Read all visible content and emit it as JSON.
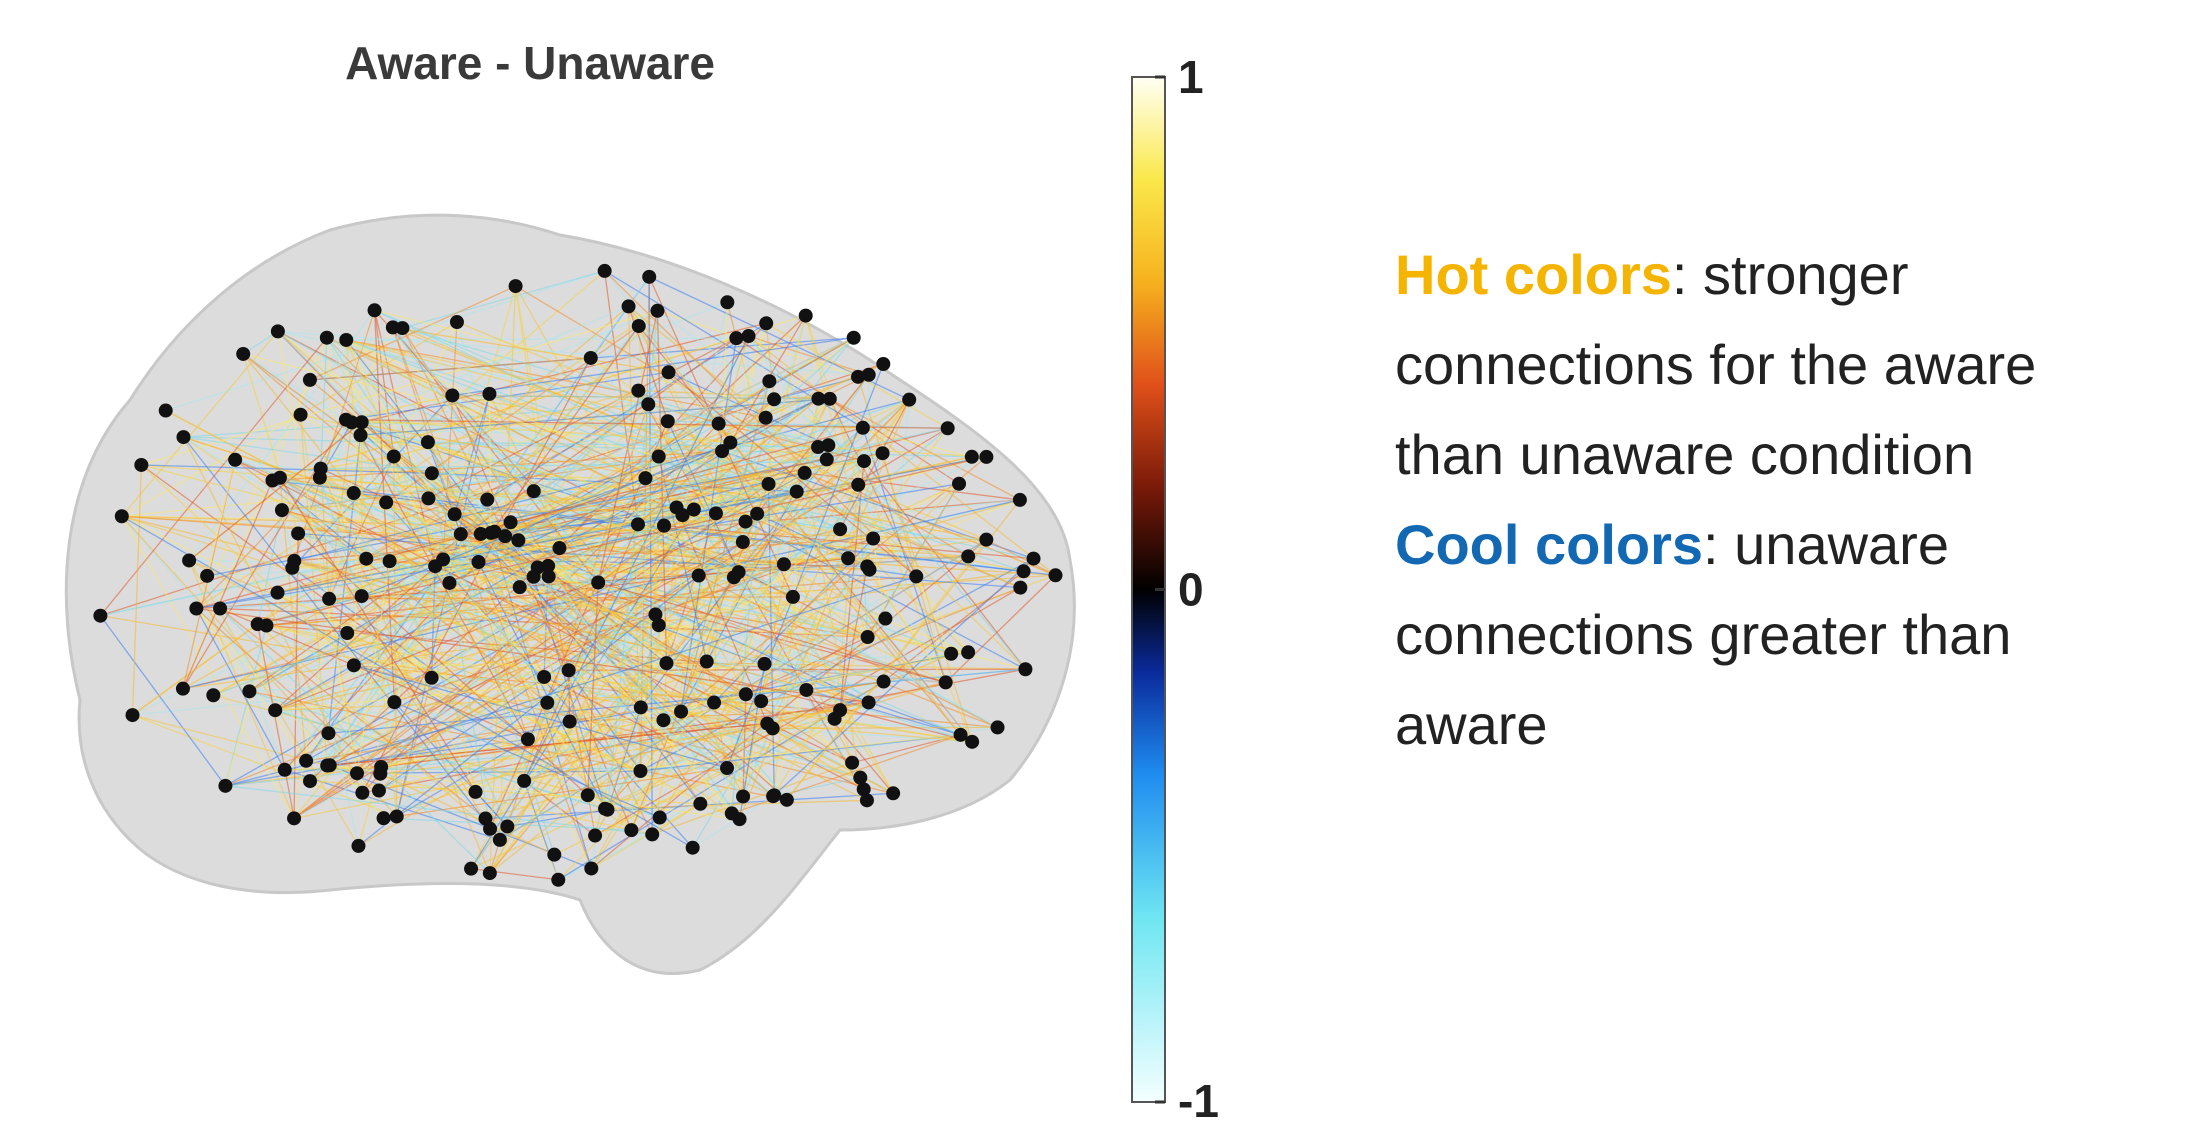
{
  "figure": {
    "title": "Aware - Unaware",
    "colorbar": {
      "ticks": [
        -1,
        0,
        1
      ],
      "lim": [
        -1,
        1
      ]
    }
  },
  "legend": {
    "hot": {
      "label": "Hot colors",
      "text": ": stronger connections for the aware than unaware condition"
    },
    "cool": {
      "label": "Cool colors",
      "text": ": unaware connections greater than aware"
    }
  }
}
